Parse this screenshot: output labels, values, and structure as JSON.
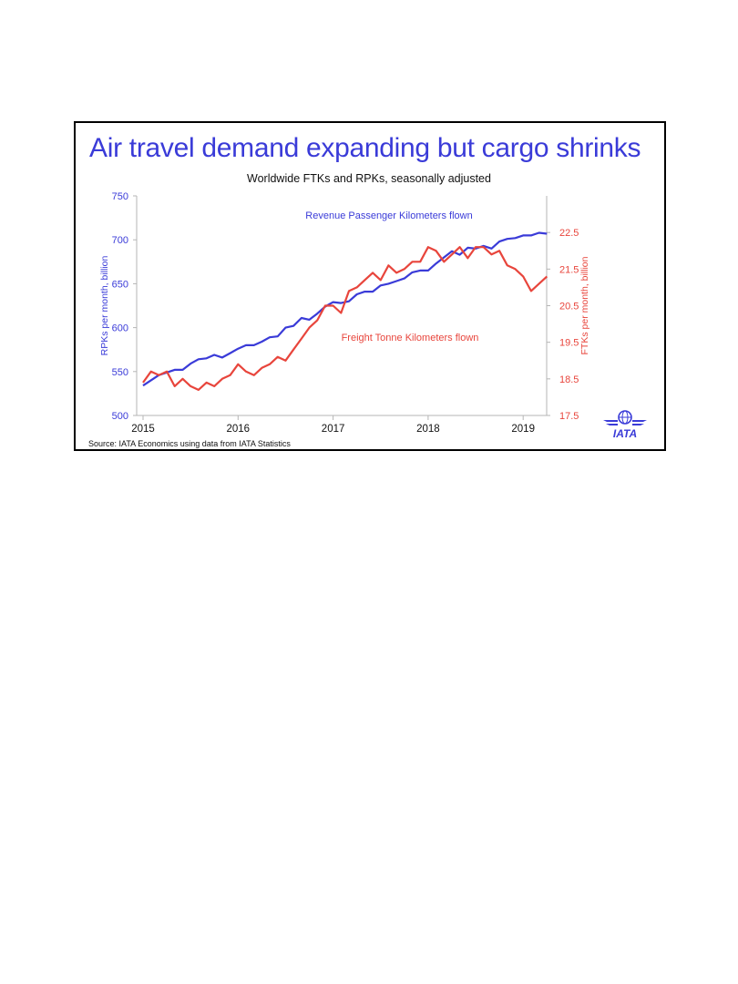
{
  "chart_data": {
    "type": "line",
    "title": "Air travel demand expanding but cargo shrinks",
    "subtitle": "Worldwide FTKs and RPKs, seasonally adjusted",
    "source": "Source: IATA Economics using data from IATA Statistics",
    "logo_text": "IATA",
    "x_ticks": [
      "2015",
      "2016",
      "2017",
      "2018",
      "2019"
    ],
    "y_left": {
      "label": "RPKs per month, billion",
      "range": [
        500,
        750
      ],
      "ticks": [
        "750",
        "700",
        "650",
        "600",
        "550",
        "500"
      ]
    },
    "y_right": {
      "label": "FTKs per month, billion",
      "range": [
        17.5,
        23.5
      ],
      "ticks": [
        "22.5",
        "21.5",
        "20.5",
        "19.5",
        "18.5",
        "17.5"
      ]
    },
    "colors": {
      "rpk": "#3a3bd8",
      "ftk": "#e8453c",
      "title": "#3a3bd8"
    },
    "series": [
      {
        "name": "Revenue Passenger Kilometers flown",
        "axis": "left",
        "x": [
          2015.0,
          2015.083,
          2015.167,
          2015.25,
          2015.333,
          2015.417,
          2015.5,
          2015.583,
          2015.667,
          2015.75,
          2015.833,
          2015.917,
          2016.0,
          2016.083,
          2016.167,
          2016.25,
          2016.333,
          2016.417,
          2016.5,
          2016.583,
          2016.667,
          2016.75,
          2016.833,
          2016.917,
          2017.0,
          2017.083,
          2017.167,
          2017.25,
          2017.333,
          2017.417,
          2017.5,
          2017.583,
          2017.667,
          2017.75,
          2017.833,
          2017.917,
          2018.0,
          2018.083,
          2018.167,
          2018.25,
          2018.333,
          2018.417,
          2018.5,
          2018.583,
          2018.667,
          2018.75,
          2018.833,
          2018.917,
          2019.0,
          2019.083,
          2019.167,
          2019.25
        ],
        "values": [
          534,
          540,
          546,
          549,
          552,
          552,
          559,
          564,
          565,
          569,
          566,
          571,
          576,
          580,
          580,
          584,
          589,
          590,
          600,
          602,
          611,
          609,
          616,
          624,
          629,
          628,
          630,
          638,
          641,
          641,
          648,
          650,
          653,
          656,
          663,
          665,
          665,
          673,
          680,
          687,
          683,
          691,
          690,
          693,
          690,
          698,
          701,
          702,
          705,
          705,
          708,
          707
        ]
      },
      {
        "name": "Freight Tonne Kilometers flown",
        "axis": "right",
        "x": [
          2015.0,
          2015.083,
          2015.167,
          2015.25,
          2015.333,
          2015.417,
          2015.5,
          2015.583,
          2015.667,
          2015.75,
          2015.833,
          2015.917,
          2016.0,
          2016.083,
          2016.167,
          2016.25,
          2016.333,
          2016.417,
          2016.5,
          2016.583,
          2016.667,
          2016.75,
          2016.833,
          2016.917,
          2017.0,
          2017.083,
          2017.167,
          2017.25,
          2017.333,
          2017.417,
          2017.5,
          2017.583,
          2017.667,
          2017.75,
          2017.833,
          2017.917,
          2018.0,
          2018.083,
          2018.167,
          2018.25,
          2018.333,
          2018.417,
          2018.5,
          2018.583,
          2018.667,
          2018.75,
          2018.833,
          2018.917,
          2019.0,
          2019.083,
          2019.167,
          2019.25
        ],
        "values": [
          18.4,
          18.7,
          18.6,
          18.7,
          18.3,
          18.5,
          18.3,
          18.2,
          18.4,
          18.3,
          18.5,
          18.6,
          18.9,
          18.7,
          18.6,
          18.8,
          18.9,
          19.1,
          19.0,
          19.3,
          19.6,
          19.9,
          20.1,
          20.5,
          20.5,
          20.3,
          20.9,
          21.0,
          21.2,
          21.4,
          21.2,
          21.6,
          21.4,
          21.5,
          21.7,
          21.7,
          22.1,
          22.0,
          21.7,
          21.9,
          22.1,
          21.8,
          22.1,
          22.1,
          21.9,
          22.0,
          21.6,
          21.5,
          21.3,
          20.9,
          21.1,
          21.3
        ]
      }
    ],
    "annotations": [
      "Revenue Passenger Kilometers flown",
      "Freight Tonne Kilometers flown"
    ],
    "grid": false,
    "legend": "inline annotations"
  }
}
